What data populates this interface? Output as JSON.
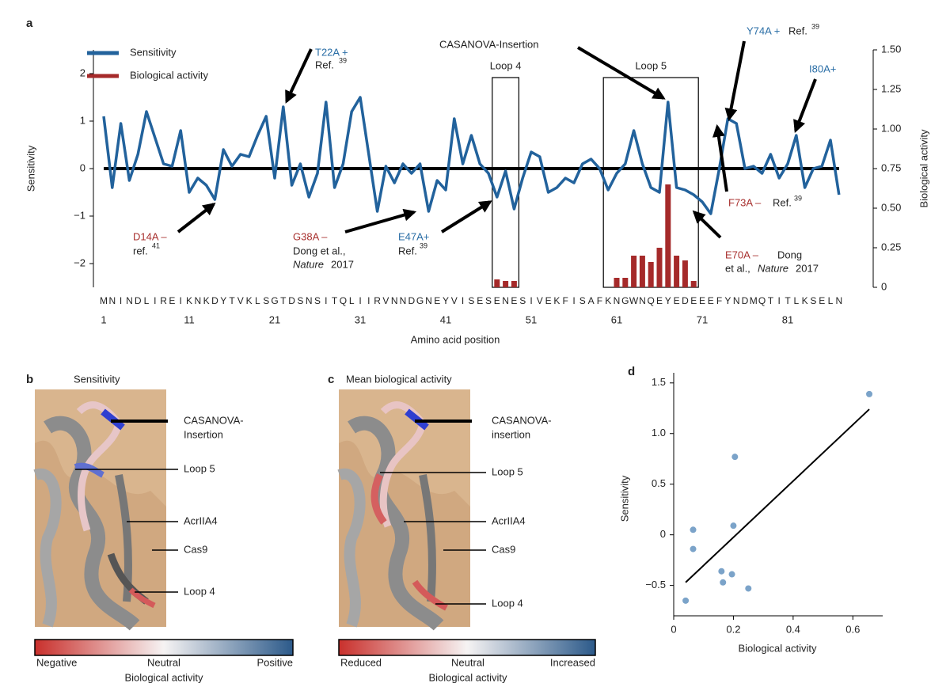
{
  "chart_data": [
    {
      "type": "line",
      "panel_label": "a",
      "categories": [
        "M",
        "N",
        "I",
        "N",
        "D",
        "L",
        "I",
        "R",
        "E",
        "I",
        "K",
        "N",
        "K",
        "D",
        "Y",
        "T",
        "V",
        "K",
        "L",
        "S",
        "G",
        "T",
        "D",
        "S",
        "N",
        "S",
        "I",
        "T",
        "Q",
        "L",
        "I",
        "I",
        "R",
        "V",
        "N",
        "N",
        "D",
        "G",
        "N",
        "E",
        "Y",
        "V",
        "I",
        "S",
        "E",
        "S",
        "E",
        "N",
        "E",
        "S",
        "I",
        "V",
        "E",
        "K",
        "F",
        "I",
        "S",
        "A",
        "F",
        "K",
        "N",
        "G",
        "W",
        "N",
        "Q",
        "E",
        "Y",
        "E",
        "D",
        "E",
        "E",
        "E",
        "F",
        "Y",
        "N",
        "D",
        "M",
        "Q",
        "T",
        "I",
        "T",
        "L",
        "K",
        "S",
        "E",
        "L",
        "N"
      ],
      "xticks": [
        1,
        11,
        21,
        31,
        41,
        51,
        61,
        71,
        81
      ],
      "xlabel": "Amino acid position",
      "ylabel": "Sensitivity",
      "y2label": "Biological activity",
      "ylim": [
        -2.5,
        2.5
      ],
      "yticks": [
        {
          "value": -2,
          "label": "−2"
        },
        {
          "value": -1,
          "label": "−1"
        },
        0,
        1,
        2
      ],
      "y2lim": [
        0,
        1.5
      ],
      "y2ticks": [
        0,
        0.25,
        {
          "value": 0.5,
          "label": "0.50"
        },
        0.75,
        {
          "value": 1,
          "label": "1.00"
        },
        1.25,
        {
          "value": 1.5,
          "label": "1.50"
        }
      ],
      "series": [
        {
          "name": "Sensitivity",
          "color": "#22629c",
          "values": [
            1.1,
            -0.4,
            0.95,
            -0.25,
            0.3,
            1.2,
            0.65,
            0.1,
            0.05,
            0.8,
            -0.5,
            -0.2,
            -0.35,
            -0.65,
            0.4,
            0.05,
            0.3,
            0.25,
            0.7,
            1.1,
            -0.2,
            1.3,
            -0.35,
            0.1,
            -0.6,
            -0.1,
            1.4,
            -0.4,
            0.1,
            1.2,
            1.5,
            0.3,
            -0.9,
            0.05,
            -0.3,
            0.1,
            -0.1,
            0.1,
            -0.9,
            -0.25,
            -0.45,
            1.05,
            0.1,
            0.7,
            0.1,
            -0.1,
            -0.6,
            -0.05,
            -0.85,
            -0.2,
            0.35,
            0.25,
            -0.5,
            -0.4,
            -0.2,
            -0.3,
            0.1,
            0.2,
            0.0,
            -0.45,
            -0.1,
            0.1,
            0.8,
            0.1,
            -0.4,
            -0.5,
            1.4,
            -0.4,
            -0.45,
            -0.55,
            -0.7,
            -0.95,
            0.0,
            1.05,
            0.95,
            0.0,
            0.05,
            -0.1,
            0.3,
            -0.2,
            0.1,
            0.7,
            -0.4,
            0.0,
            0.05,
            0.6,
            -0.55
          ]
        },
        {
          "name": "Biological activity",
          "type": "bar",
          "axis": "y2",
          "color": "#a52a2a",
          "values": [
            null,
            null,
            null,
            null,
            null,
            null,
            null,
            null,
            null,
            null,
            null,
            null,
            null,
            null,
            null,
            null,
            null,
            null,
            null,
            null,
            null,
            null,
            null,
            null,
            null,
            null,
            null,
            null,
            null,
            null,
            null,
            null,
            null,
            null,
            null,
            null,
            null,
            null,
            null,
            null,
            null,
            null,
            null,
            null,
            null,
            null,
            0.05,
            0.04,
            0.04,
            null,
            null,
            null,
            null,
            null,
            null,
            null,
            null,
            null,
            null,
            null,
            0.06,
            0.06,
            0.2,
            0.2,
            0.16,
            0.25,
            0.65,
            0.2,
            0.17,
            0.04,
            null,
            null,
            null,
            null,
            null,
            null,
            null,
            null,
            null,
            null,
            null,
            null,
            null,
            null,
            null,
            null,
            null
          ]
        }
      ],
      "zero_line": true,
      "regions": [
        {
          "label": "Loop 4",
          "from": 47,
          "to": 49
        },
        {
          "label": "Loop 5",
          "from": 60,
          "to": 70
        }
      ],
      "annotations": [
        {
          "text": "T22A +",
          "color": "#2a6ea6"
        },
        {
          "text": "Ref.",
          "color": "#222"
        },
        {
          "text": "39",
          "color": "#222"
        },
        {
          "text": "CASANOVA-Insertion",
          "color": "#222"
        },
        {
          "text": "Y74A +",
          "color": "#2a6ea6"
        },
        {
          "text": "Ref.",
          "color": "#222"
        },
        {
          "text": "39",
          "color": "#222"
        },
        {
          "text": "I80A+",
          "color": "#2a6ea6"
        },
        {
          "text": "D14A –",
          "color": "#a8312f"
        },
        {
          "text": "ref.",
          "color": "#222"
        },
        {
          "text": "41",
          "color": "#222"
        },
        {
          "text": "G38A –",
          "color": "#a8312f"
        },
        {
          "text": "Dong et al.,",
          "color": "#222"
        },
        {
          "text": "Nature",
          "color": "#222",
          "style": "italic"
        },
        {
          "text": "2017",
          "color": "#222"
        },
        {
          "text": "E47A+",
          "color": "#2a6ea6"
        },
        {
          "text": "Ref.",
          "color": "#222"
        },
        {
          "text": "39",
          "color": "#222"
        },
        {
          "text": "F73A –",
          "color": "#a8312f"
        },
        {
          "text": "Ref.",
          "color": "#222"
        },
        {
          "text": "39",
          "color": "#222"
        },
        {
          "text": "E70A –",
          "color": "#a8312f"
        },
        {
          "text": "Dong",
          "color": "#222"
        },
        {
          "text": "et al.,",
          "color": "#222"
        },
        {
          "text": "Nature",
          "color": "#222",
          "style": "italic"
        },
        {
          "text": "2017",
          "color": "#222"
        }
      ]
    },
    {
      "type": "scatter",
      "panel_label": "d",
      "xlabel": "Biological activity",
      "ylabel": "Sensitivity",
      "color": "#7ba3c9",
      "x": [
        0.04,
        0.065,
        0.065,
        0.16,
        0.165,
        0.195,
        0.2,
        0.205,
        0.25,
        0.655
      ],
      "values": [
        -0.65,
        0.05,
        -0.14,
        -0.36,
        -0.47,
        -0.39,
        0.09,
        0.77,
        -0.53,
        1.39
      ],
      "fit": {
        "x": [
          0.04,
          0.655
        ],
        "y": [
          -0.47,
          1.24
        ]
      },
      "xlim": [
        0,
        0.7
      ],
      "xticks": [
        0,
        0.2,
        0.4,
        0.6
      ],
      "ylim": [
        -0.8,
        1.6
      ],
      "yticks": [
        {
          "value": -0.5,
          "label": "−0.5"
        },
        0,
        0.5,
        {
          "value": 1,
          "label": "1.0"
        },
        1.5
      ]
    }
  ],
  "panels": {
    "b": {
      "label": "b",
      "title": "Sensitivity",
      "labels": [
        "CASANOVA-",
        "Insertion",
        "Loop 5",
        "AcrIIA4",
        "Cas9",
        "Loop 4"
      ],
      "colorbar": {
        "low": "Negative",
        "mid": "Neutral",
        "high": "Positive",
        "title": "Biological activity"
      }
    },
    "c": {
      "label": "c",
      "title": "Mean biological activity",
      "labels": [
        "CASANOVA-",
        "insertion",
        "Loop 5",
        "AcrIIA4",
        "Cas9",
        "Loop 4"
      ],
      "colorbar": {
        "low": "Reduced",
        "mid": "Neutral",
        "high": "Increased",
        "title": "Biological activity"
      }
    }
  }
}
